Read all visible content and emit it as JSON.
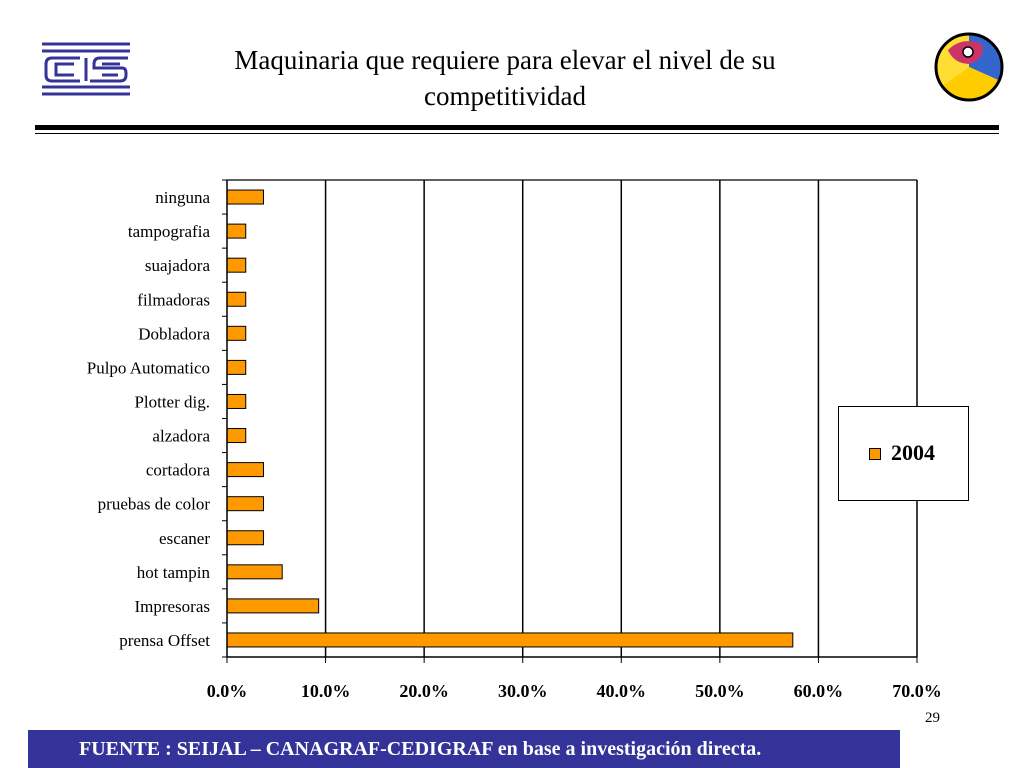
{
  "slide": {
    "title_line1": "Maquinaria que requiere para elevar el nivel de su",
    "title_line2": "competitividad",
    "page_number": "29",
    "footer": "FUENTE :  SEIJAL – CANAGRAF-CEDIGRAF en base a investigación directa."
  },
  "colors": {
    "bar_fill": "#ff9900",
    "footer_bg": "#333399",
    "logo_left": "#333399"
  },
  "icons": {
    "logo_left": "cedigraf-logo-icon",
    "logo_right": "colorful-c-logo-icon"
  },
  "chart_data": {
    "type": "bar",
    "orientation": "horizontal",
    "categories": [
      "ninguna",
      "tampografia",
      "suajadora",
      "filmadoras",
      "Dobladora",
      "Pulpo Automatico",
      "Plotter dig.",
      "alzadora",
      "cortadora",
      "pruebas de color",
      "escaner",
      "hot tampin",
      "Impresoras",
      "prensa Offset"
    ],
    "series": [
      {
        "name": "2004",
        "color": "#ff9900",
        "values": [
          3.7,
          1.9,
          1.9,
          1.9,
          1.9,
          1.9,
          1.9,
          1.9,
          3.7,
          3.7,
          3.7,
          5.6,
          9.3,
          57.4
        ]
      }
    ],
    "xlim": [
      0,
      70
    ],
    "x_ticks": [
      0,
      10,
      20,
      30,
      40,
      50,
      60,
      70
    ],
    "x_tick_labels": [
      "0.0%",
      "10.0%",
      "20.0%",
      "30.0%",
      "40.0%",
      "50.0%",
      "60.0%",
      "70.0%"
    ],
    "xlabel": "",
    "ylabel": "",
    "grid": "vertical",
    "legend_position": "right"
  }
}
